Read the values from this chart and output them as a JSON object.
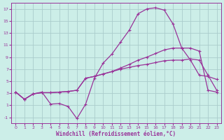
{
  "background_color": "#cceee8",
  "grid_color": "#aacccc",
  "line_color": "#993399",
  "xlim": [
    -0.5,
    23.5
  ],
  "ylim": [
    -2,
    18
  ],
  "xticks": [
    0,
    1,
    2,
    3,
    4,
    5,
    6,
    7,
    8,
    9,
    10,
    11,
    12,
    13,
    14,
    15,
    16,
    17,
    18,
    19,
    20,
    21,
    22,
    23
  ],
  "yticks": [
    -1,
    1,
    3,
    5,
    7,
    9,
    11,
    13,
    15,
    17
  ],
  "xlabel": "Windchill (Refroidissement éolien,°C)",
  "line1_x": [
    0,
    1,
    2,
    3,
    4,
    5,
    6,
    7,
    8,
    9,
    10,
    11,
    12,
    13,
    14,
    15,
    16,
    17,
    18,
    19,
    20,
    21,
    22,
    23
  ],
  "line1_y": [
    3.2,
    2.0,
    2.9,
    3.2,
    1.2,
    1.3,
    0.8,
    -1.2,
    1.2,
    5.5,
    8.0,
    9.5,
    11.5,
    13.5,
    16.2,
    17.0,
    17.2,
    16.8,
    14.5,
    10.5,
    8.5,
    6.0,
    5.8,
    5.3
  ],
  "line2_x": [
    0,
    1,
    2,
    3,
    4,
    5,
    6,
    7,
    8,
    9,
    10,
    11,
    12,
    13,
    14,
    15,
    16,
    17,
    18,
    19,
    20,
    21,
    22,
    23
  ],
  "line2_y": [
    3.2,
    2.0,
    2.9,
    3.1,
    3.1,
    3.2,
    3.3,
    3.5,
    5.5,
    5.8,
    6.2,
    6.6,
    7.0,
    7.3,
    7.6,
    7.8,
    8.1,
    8.4,
    8.5,
    8.5,
    8.7,
    8.5,
    6.0,
    3.5
  ],
  "line3_x": [
    0,
    1,
    2,
    3,
    4,
    5,
    6,
    7,
    8,
    9,
    10,
    11,
    12,
    13,
    14,
    15,
    16,
    17,
    18,
    19,
    20,
    21,
    22,
    23
  ],
  "line3_y": [
    3.2,
    2.0,
    2.9,
    3.1,
    3.1,
    3.2,
    3.3,
    3.5,
    5.5,
    5.8,
    6.2,
    6.6,
    7.2,
    7.8,
    8.5,
    9.0,
    9.6,
    10.2,
    10.5,
    10.5,
    10.5,
    10.0,
    3.5,
    3.2
  ]
}
